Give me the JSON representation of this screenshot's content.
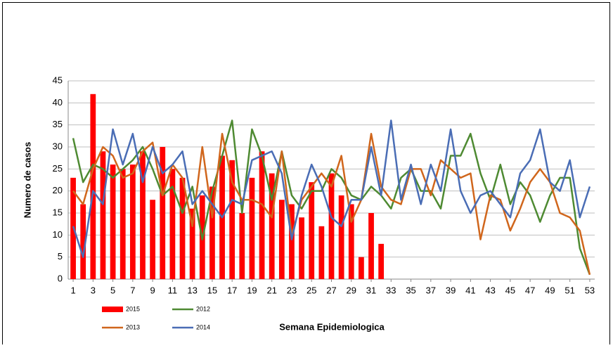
{
  "chart_data": {
    "type": "combo",
    "x_label": "Semana Epidemiologica",
    "y_label": "Numero de casos",
    "x": [
      1,
      2,
      3,
      4,
      5,
      6,
      7,
      8,
      9,
      10,
      11,
      12,
      13,
      14,
      15,
      16,
      17,
      18,
      19,
      20,
      21,
      22,
      23,
      24,
      25,
      26,
      27,
      28,
      29,
      30,
      31,
      32,
      33,
      34,
      35,
      36,
      37,
      38,
      39,
      40,
      41,
      42,
      43,
      44,
      45,
      46,
      47,
      48,
      49,
      50,
      51,
      52,
      53
    ],
    "xlim": [
      0.5,
      53.5
    ],
    "xticks": [
      1,
      3,
      5,
      7,
      9,
      11,
      13,
      15,
      17,
      19,
      21,
      23,
      25,
      27,
      29,
      31,
      33,
      35,
      37,
      39,
      41,
      43,
      45,
      47,
      49,
      51,
      53
    ],
    "ylim": [
      0,
      45
    ],
    "yticks": [
      0,
      5,
      10,
      15,
      20,
      25,
      30,
      35,
      40,
      45
    ],
    "grid": true,
    "series": [
      {
        "name": "2015",
        "type": "bar",
        "color": "#ff0000",
        "values": [
          23,
          17,
          42,
          29,
          26,
          25,
          26,
          29,
          18,
          30,
          25,
          23,
          16,
          19,
          21,
          28,
          27,
          15,
          23,
          29,
          24,
          18,
          17,
          14,
          22,
          12,
          24,
          19,
          17,
          5,
          15,
          8,
          null,
          null,
          null,
          null,
          null,
          null,
          null,
          null,
          null,
          null,
          null,
          null,
          null,
          null,
          null,
          null,
          null,
          null,
          null,
          null,
          null
        ]
      },
      {
        "name": "2012",
        "type": "line",
        "color": "#4e8a32",
        "values": [
          32,
          22,
          26,
          25,
          23,
          25,
          27,
          30,
          25,
          19,
          21,
          15,
          21,
          9,
          20,
          28,
          36,
          15,
          34,
          28,
          18,
          29,
          19,
          16,
          20,
          20,
          25,
          23,
          19,
          18,
          21,
          19,
          16,
          23,
          25,
          20,
          20,
          16,
          28,
          28,
          33,
          24,
          18,
          26,
          17,
          22,
          19,
          13,
          19,
          23,
          23,
          7,
          1
        ]
      },
      {
        "name": "2013",
        "type": "line",
        "color": "#d0661c",
        "values": [
          20,
          17,
          25,
          30,
          28,
          23,
          24,
          29,
          31,
          19,
          26,
          23,
          12,
          30,
          14,
          33,
          22,
          18,
          18,
          17,
          14,
          29,
          10,
          18,
          21,
          24,
          21,
          28,
          13,
          18,
          33,
          21,
          18,
          17,
          25,
          25,
          19,
          27,
          25,
          23,
          24,
          9,
          19,
          18,
          11,
          16,
          22,
          25,
          22,
          15,
          14,
          11,
          1
        ]
      },
      {
        "name": "2014",
        "type": "line",
        "color": "#4a6db5",
        "values": [
          12,
          5,
          20,
          17,
          34,
          26,
          33,
          22,
          30,
          24,
          26,
          29,
          17,
          20,
          17,
          14,
          18,
          17,
          27,
          28,
          29,
          24,
          9,
          19,
          26,
          21,
          14,
          12,
          18,
          18,
          30,
          19,
          36,
          18,
          26,
          17,
          26,
          20,
          34,
          20,
          15,
          19,
          20,
          17,
          14,
          24,
          27,
          34,
          22,
          20,
          27,
          14,
          21
        ]
      }
    ]
  }
}
